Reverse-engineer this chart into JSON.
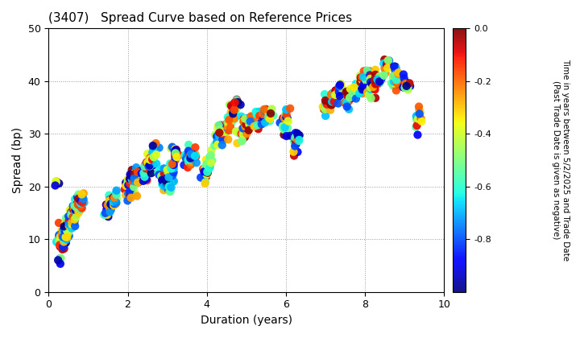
{
  "title": "(3407)   Spread Curve based on Reference Prices",
  "xlabel": "Duration (years)",
  "ylabel": "Spread (bp)",
  "xlim": [
    0,
    10
  ],
  "ylim": [
    0,
    50
  ],
  "xticks": [
    0,
    2,
    4,
    6,
    8,
    10
  ],
  "yticks": [
    0,
    10,
    20,
    30,
    40,
    50
  ],
  "colorbar_label": "Time in years between 5/2/2025 and Trade Date\n(Past Trade Date is given as negative)",
  "colorbar_ticks": [
    0.0,
    -0.2,
    -0.4,
    -0.6,
    -0.8
  ],
  "vmin": -1.0,
  "vmax": 0.0,
  "background_color": "#ffffff",
  "grid_color": "#999999",
  "point_size": 55,
  "alpha": 0.92
}
